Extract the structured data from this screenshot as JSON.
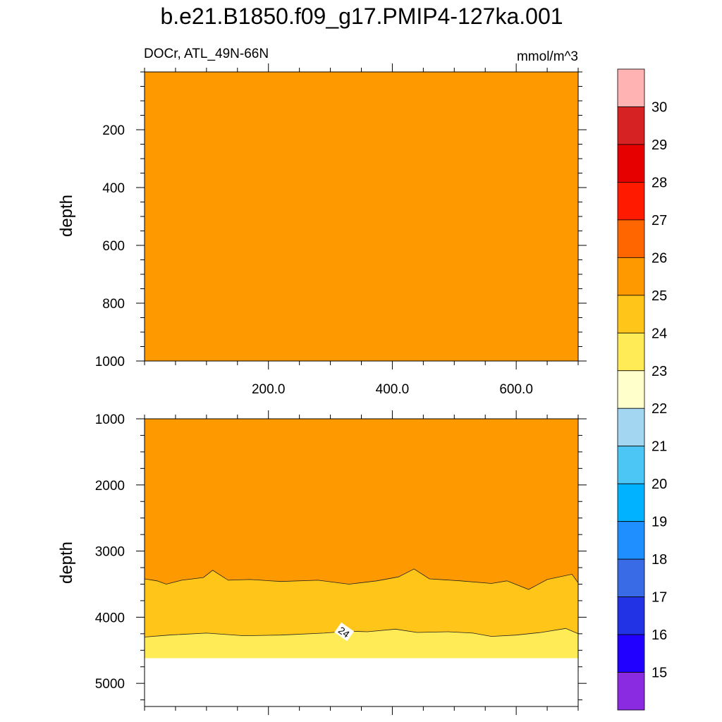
{
  "chart_data": {
    "type": "contour",
    "title": "b.e21.B1850.f09_g17.PMIP4-127ka.001",
    "left_subtitle": "DOCr, ATL_49N-66N",
    "right_subtitle": "mmol/m^3",
    "x": {
      "range": [
        0,
        700
      ],
      "ticks": [
        "200.0",
        "400.0",
        "600.0"
      ],
      "tick_values": [
        200,
        400,
        600
      ]
    },
    "panels": [
      {
        "name": "upper-ocean",
        "ylabel": "depth",
        "ylim": [
          0,
          1000
        ],
        "yticks": [
          200,
          400,
          600,
          800,
          1000
        ],
        "ytick_labels": [
          "200",
          "400",
          "600",
          "800",
          "1000"
        ],
        "fill_level": "25-26",
        "description": "uniform 25-26 band"
      },
      {
        "name": "deep-ocean",
        "ylabel": "depth",
        "ylim": [
          1000,
          5350
        ],
        "yticks": [
          1000,
          2000,
          3000,
          4000,
          5000
        ],
        "ytick_labels": [
          "1000",
          "2000",
          "3000",
          "4000",
          "5000"
        ],
        "bands": [
          {
            "level": "25-26",
            "from_depth": 1000,
            "to_depth_mean": 3440
          },
          {
            "level": "24-25",
            "from_depth_mean": 3440,
            "to_depth_mean": 4260
          },
          {
            "level": "23-24",
            "from_depth_mean": 4260,
            "to_depth": 4620
          }
        ],
        "contour_25_depth": [
          [
            0,
            3420
          ],
          [
            20,
            3450
          ],
          [
            35,
            3500
          ],
          [
            60,
            3440
          ],
          [
            95,
            3400
          ],
          [
            110,
            3290
          ],
          [
            135,
            3440
          ],
          [
            170,
            3430
          ],
          [
            220,
            3460
          ],
          [
            280,
            3440
          ],
          [
            330,
            3500
          ],
          [
            375,
            3450
          ],
          [
            410,
            3390
          ],
          [
            435,
            3270
          ],
          [
            460,
            3420
          ],
          [
            510,
            3450
          ],
          [
            560,
            3490
          ],
          [
            585,
            3450
          ],
          [
            620,
            3580
          ],
          [
            650,
            3430
          ],
          [
            690,
            3350
          ],
          [
            700,
            3480
          ]
        ],
        "contour_24_depth": [
          [
            0,
            4300
          ],
          [
            40,
            4270
          ],
          [
            100,
            4240
          ],
          [
            160,
            4280
          ],
          [
            220,
            4270
          ],
          [
            290,
            4240
          ],
          [
            330,
            4210
          ],
          [
            360,
            4220
          ],
          [
            405,
            4180
          ],
          [
            440,
            4230
          ],
          [
            490,
            4220
          ],
          [
            530,
            4240
          ],
          [
            560,
            4290
          ],
          [
            600,
            4270
          ],
          [
            640,
            4230
          ],
          [
            680,
            4170
          ],
          [
            700,
            4250
          ]
        ],
        "contour_label": "24",
        "bottom_depth": 4620
      }
    ],
    "colorbar": {
      "labels": [
        "15",
        "16",
        "17",
        "18",
        "19",
        "20",
        "21",
        "22",
        "23",
        "24",
        "25",
        "26",
        "27",
        "28",
        "29",
        "30"
      ],
      "colors": [
        "#8a2be2",
        "#2200ff",
        "#2233e6",
        "#3a6be6",
        "#1f8fff",
        "#00b2ff",
        "#4cc6f5",
        "#a3d6f0",
        "#ffffcc",
        "#ffeb55",
        "#ffc519",
        "#ff9900",
        "#ff6600",
        "#ff1a00",
        "#e60000",
        "#d62222",
        "#ffb3b3"
      ]
    }
  }
}
